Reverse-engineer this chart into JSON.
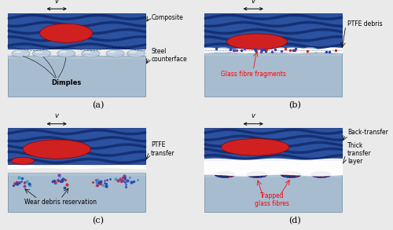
{
  "bg_color": "#eaeaea",
  "composite_dark_blue": "#1a3580",
  "composite_mid_blue": "#2a52a0",
  "composite_wave_dark": "#0d2060",
  "steel_color": "#a8bcd0",
  "steel_edge": "#7a96b0",
  "steel_top_color": "#b8ccd8",
  "red_color": "#d02020",
  "red_edge": "#880000",
  "white_color": "#ffffff",
  "debris_blue": "#2244aa",
  "debris_red": "#cc2020",
  "debris_purple": "#7733aa",
  "debris_mixed": "#4433cc",
  "dimple_color": "#c0d0e0",
  "dimple_edge": "#8098b0",
  "dimple_highlight": "#e8f0f8",
  "dark_pool": "#1a2a70",
  "panel_labels": [
    "(a)",
    "(b)",
    "(c)",
    "(d)"
  ],
  "label_fontsize": 7,
  "ann_fontsize": 5.5,
  "v_fontsize": 6,
  "arrow_lw": 0.7
}
